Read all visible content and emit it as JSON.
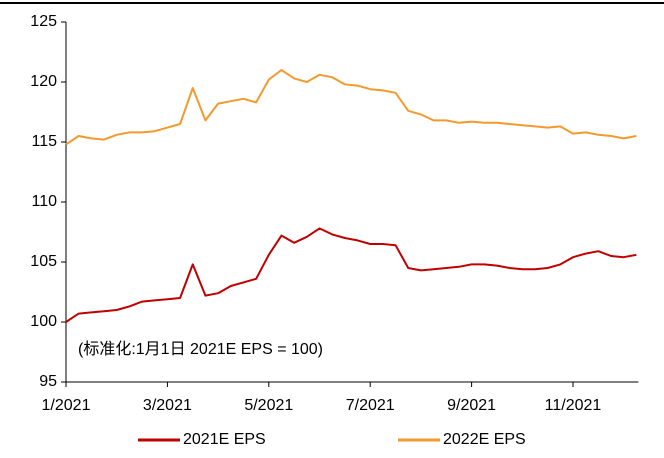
{
  "chart_data": {
    "type": "line",
    "annotation": "(标准化:1月1日 2021E EPS = 100)",
    "categories": [
      "1/2021",
      null,
      null,
      null,
      null,
      null,
      null,
      null,
      "3/2021",
      null,
      null,
      null,
      null,
      null,
      null,
      null,
      "5/2021",
      null,
      null,
      null,
      null,
      null,
      null,
      null,
      "7/2021",
      null,
      null,
      null,
      null,
      null,
      null,
      null,
      "9/2021",
      null,
      null,
      null,
      null,
      null,
      null,
      null,
      "11/2021",
      null,
      null,
      null,
      null,
      null
    ],
    "series": [
      {
        "name": "2021E EPS",
        "color": "#c00000",
        "values": [
          100.0,
          100.7,
          100.8,
          100.9,
          101.0,
          101.3,
          101.7,
          101.8,
          101.9,
          102.0,
          104.8,
          102.2,
          102.4,
          103.0,
          103.3,
          103.6,
          105.6,
          107.2,
          106.6,
          107.1,
          107.8,
          107.3,
          107.0,
          106.8,
          106.5,
          106.5,
          106.4,
          104.5,
          104.3,
          104.4,
          104.5,
          104.6,
          104.8,
          104.8,
          104.7,
          104.5,
          104.4,
          104.4,
          104.5,
          104.8,
          105.4,
          105.7,
          105.9,
          105.5,
          105.4,
          105.6
        ]
      },
      {
        "name": "2022E EPS",
        "color": "#f39a2e",
        "values": [
          114.8,
          115.5,
          115.3,
          115.2,
          115.6,
          115.8,
          115.8,
          115.9,
          116.2,
          116.5,
          119.5,
          116.8,
          118.2,
          118.4,
          118.6,
          118.3,
          120.2,
          121.0,
          120.3,
          120.0,
          120.6,
          120.4,
          119.8,
          119.7,
          119.4,
          119.3,
          119.1,
          117.6,
          117.3,
          116.8,
          116.8,
          116.6,
          116.7,
          116.6,
          116.6,
          116.5,
          116.4,
          116.3,
          116.2,
          116.3,
          115.7,
          115.8,
          115.6,
          115.5,
          115.3,
          115.5
        ]
      }
    ],
    "ylim": [
      95,
      125
    ],
    "yticks": [
      95,
      100,
      105,
      110,
      115,
      120,
      125
    ],
    "legend": "bottom"
  }
}
